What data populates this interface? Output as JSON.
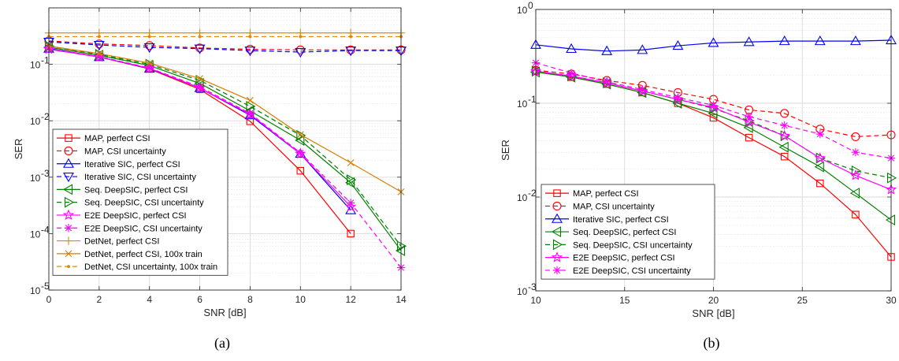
{
  "chart_data": [
    {
      "type": "line",
      "caption": "(a)",
      "xlabel": "SNR [dB]",
      "ylabel": "SER",
      "xlim": [
        0,
        14
      ],
      "ylim": [
        1e-05,
        1
      ],
      "yscale": "log",
      "grid": true,
      "legend_position": "bottom-left",
      "xticks": [
        0,
        2,
        4,
        6,
        8,
        10,
        12,
        14
      ],
      "xtick_labels": [
        "0",
        "2",
        "4",
        "6",
        "8",
        "10",
        "12",
        "14"
      ],
      "yticks": [
        1e-05,
        0.0001,
        0.001,
        0.01,
        0.1
      ],
      "ytick_labels": [
        [
          "10",
          "-5"
        ],
        [
          "10",
          "-4"
        ],
        [
          "10",
          "-3"
        ],
        [
          "10",
          "-2"
        ],
        [
          "10",
          "-1"
        ]
      ],
      "series": [
        {
          "name": "MAP, perfect CSI",
          "color": "#ff0000",
          "dash": "solid",
          "marker": "square",
          "x": [
            0,
            2,
            4,
            6,
            8,
            10,
            12
          ],
          "y": [
            0.19,
            0.135,
            0.083,
            0.036,
            0.0098,
            0.0013,
            0.0001
          ]
        },
        {
          "name": "MAP, CSI uncertainty",
          "color": "#ff0000",
          "dash": "dashed",
          "marker": "circle",
          "x": [
            0,
            2,
            4,
            6,
            8,
            10,
            12,
            14
          ],
          "y": [
            0.26,
            0.23,
            0.215,
            0.195,
            0.185,
            0.18,
            0.18,
            0.18
          ]
        },
        {
          "name": "Iterative SIC, perfect CSI",
          "color": "#0000ff",
          "dash": "solid",
          "marker": "triangle-up",
          "x": [
            0,
            2,
            4,
            6,
            8,
            10,
            12
          ],
          "y": [
            0.19,
            0.135,
            0.084,
            0.038,
            0.0125,
            0.0026,
            0.00026
          ]
        },
        {
          "name": "Iterative SIC, CSI uncertainty",
          "color": "#0000ff",
          "dash": "dashed",
          "marker": "triangle-down",
          "x": [
            0,
            2,
            4,
            6,
            8,
            10,
            12,
            14
          ],
          "y": [
            0.25,
            0.22,
            0.2,
            0.19,
            0.175,
            0.165,
            0.175,
            0.175
          ]
        },
        {
          "name": "Seq. DeepSIC, perfect CSI",
          "color": "#008000",
          "dash": "solid",
          "marker": "triangle-left",
          "x": [
            0,
            2,
            4,
            6,
            8,
            10,
            12,
            14
          ],
          "y": [
            0.2,
            0.145,
            0.095,
            0.046,
            0.015,
            0.0045,
            0.0008,
            5e-05
          ]
        },
        {
          "name": "Seq. DeepSIC, CSI uncertainty",
          "color": "#008000",
          "dash": "dashed",
          "marker": "triangle-right",
          "x": [
            0,
            2,
            4,
            6,
            8,
            10,
            12,
            14
          ],
          "y": [
            0.21,
            0.15,
            0.1,
            0.052,
            0.018,
            0.0055,
            0.0009,
            6e-05
          ]
        },
        {
          "name": "E2E DeepSIC, perfect CSI",
          "color": "#ff00ff",
          "dash": "solid",
          "marker": "star",
          "x": [
            0,
            2,
            4,
            6,
            8,
            10,
            12
          ],
          "y": [
            0.185,
            0.135,
            0.085,
            0.038,
            0.013,
            0.0026,
            0.0003
          ]
        },
        {
          "name": "E2E DeepSIC, CSI uncertainty",
          "color": "#ff00ff",
          "dash": "dashed",
          "marker": "asterisk",
          "x": [
            0,
            2,
            4,
            6,
            8,
            10,
            12,
            14
          ],
          "y": [
            0.19,
            0.138,
            0.086,
            0.04,
            0.0135,
            0.0027,
            0.00035,
            2.5e-05
          ]
        },
        {
          "name": "DetNet, perfect CSI",
          "color": "#e08a00",
          "dash": "solid",
          "marker": "plus",
          "x": [
            0,
            2,
            4,
            6,
            8,
            10,
            12,
            14
          ],
          "y": [
            0.36,
            0.36,
            0.36,
            0.36,
            0.36,
            0.36,
            0.36,
            0.36
          ]
        },
        {
          "name": "DetNet, perfect CSI, 100x train",
          "color": "#d47f00",
          "dash": "solid",
          "marker": "x",
          "x": [
            0,
            2,
            4,
            6,
            8,
            10,
            12,
            14
          ],
          "y": [
            0.21,
            0.155,
            0.105,
            0.056,
            0.023,
            0.0057,
            0.0018,
            0.00055
          ]
        },
        {
          "name": "DetNet, CSI uncertainty, 100x train",
          "color": "#e08a00",
          "dash": "dashed",
          "marker": "dot",
          "x": [
            0,
            2,
            4,
            6,
            8,
            10,
            12,
            14
          ],
          "y": [
            0.31,
            0.31,
            0.31,
            0.31,
            0.31,
            0.31,
            0.31,
            0.31
          ]
        }
      ]
    },
    {
      "type": "line",
      "caption": "(b)",
      "xlabel": "SNR [dB]",
      "ylabel": "SER",
      "xlim": [
        10,
        30
      ],
      "ylim": [
        0.001,
        1
      ],
      "yscale": "log",
      "grid": true,
      "legend_position": "bottom-left",
      "xticks": [
        10,
        15,
        20,
        25,
        30
      ],
      "xtick_labels": [
        "10",
        "15",
        "20",
        "25",
        "30"
      ],
      "yticks": [
        0.001,
        0.01,
        0.1,
        1
      ],
      "ytick_labels": [
        [
          "10",
          "-3"
        ],
        [
          "10",
          "-2"
        ],
        [
          "10",
          "-1"
        ],
        [
          "10",
          "0"
        ]
      ],
      "series": [
        {
          "name": "MAP, perfect CSI",
          "color": "#ff0000",
          "dash": "solid",
          "marker": "square",
          "x": [
            10,
            12,
            14,
            16,
            18,
            20,
            22,
            24,
            26,
            28,
            30
          ],
          "y": [
            0.22,
            0.19,
            0.16,
            0.13,
            0.1,
            0.07,
            0.043,
            0.027,
            0.014,
            0.0065,
            0.0023
          ]
        },
        {
          "name": "MAP, CSI uncertainty",
          "color": "#ff0000",
          "dash": "dashed",
          "marker": "circle",
          "x": [
            10,
            12,
            14,
            16,
            18,
            20,
            22,
            24,
            26,
            28,
            30
          ],
          "y": [
            0.225,
            0.205,
            0.175,
            0.155,
            0.13,
            0.11,
            0.085,
            0.078,
            0.053,
            0.044,
            0.046
          ]
        },
        {
          "name": "Iterative SIC, perfect CSI",
          "color": "#0000ff",
          "dash": "solid",
          "marker": "triangle-up",
          "x": [
            10,
            12,
            14,
            16,
            18,
            20,
            22,
            24,
            26,
            28,
            30
          ],
          "y": [
            0.42,
            0.38,
            0.36,
            0.37,
            0.41,
            0.44,
            0.45,
            0.46,
            0.46,
            0.46,
            0.47
          ]
        },
        {
          "name": "Seq. DeepSIC, perfect CSI",
          "color": "#008000",
          "dash": "solid",
          "marker": "triangle-left",
          "x": [
            10,
            12,
            14,
            16,
            18,
            20,
            22,
            24,
            26,
            28,
            30
          ],
          "y": [
            0.215,
            0.19,
            0.16,
            0.13,
            0.1,
            0.078,
            0.055,
            0.034,
            0.021,
            0.011,
            0.0057
          ]
        },
        {
          "name": "Seq. DeepSIC, CSI uncertainty",
          "color": "#008000",
          "dash": "dashed",
          "marker": "triangle-right",
          "x": [
            10,
            12,
            14,
            16,
            18,
            20,
            22,
            24,
            26,
            28,
            30
          ],
          "y": [
            0.22,
            0.195,
            0.165,
            0.135,
            0.11,
            0.088,
            0.065,
            0.045,
            0.026,
            0.019,
            0.016
          ]
        },
        {
          "name": "E2E DeepSIC, perfect CSI",
          "color": "#ff00ff",
          "dash": "solid",
          "marker": "star",
          "x": [
            10,
            12,
            14,
            16,
            18,
            20,
            22,
            24,
            26,
            28,
            30
          ],
          "y": [
            0.22,
            0.195,
            0.165,
            0.135,
            0.11,
            0.09,
            0.063,
            0.045,
            0.026,
            0.017,
            0.012
          ]
        },
        {
          "name": "E2E DeepSIC, CSI uncertainty",
          "color": "#ff00ff",
          "dash": "dashed",
          "marker": "asterisk",
          "x": [
            10,
            12,
            14,
            16,
            18,
            20,
            22,
            24,
            26,
            28,
            30
          ],
          "y": [
            0.27,
            0.21,
            0.17,
            0.14,
            0.115,
            0.095,
            0.072,
            0.058,
            0.047,
            0.03,
            0.026
          ]
        }
      ]
    }
  ]
}
